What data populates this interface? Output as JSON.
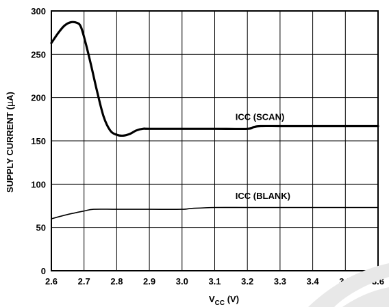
{
  "chart_data": {
    "type": "line",
    "xlabel_main": "V",
    "xlabel_sub": "CC",
    "xlabel_unit": " (V)",
    "ylabel_pre": "SUPPLY CURRENT (",
    "ylabel_mu": "μ",
    "ylabel_post": "A)",
    "xlim": [
      2.6,
      3.6
    ],
    "ylim": [
      0,
      300
    ],
    "x_ticks": [
      "2.6",
      "2.7",
      "2.8",
      "2.9",
      "3.0",
      "3.1",
      "3.2",
      "3.3",
      "3.4",
      "3.5",
      "3.6"
    ],
    "y_ticks": [
      "0",
      "50",
      "100",
      "150",
      "200",
      "250",
      "300"
    ],
    "grid": true,
    "series": [
      {
        "name": "ICC (SCAN)",
        "x": [
          2.6,
          2.62,
          2.64,
          2.66,
          2.68,
          2.69,
          2.7,
          2.72,
          2.74,
          2.76,
          2.78,
          2.8,
          2.82,
          2.84,
          2.86,
          2.88,
          2.9,
          3.0,
          3.1,
          3.2,
          3.22,
          3.24,
          3.3,
          3.4,
          3.5,
          3.6
        ],
        "y": [
          263,
          274,
          283,
          287,
          286,
          282,
          270,
          240,
          207,
          178,
          162,
          157,
          156,
          158,
          162,
          164,
          164,
          164,
          164,
          164,
          166,
          167,
          167,
          167,
          167,
          167
        ]
      },
      {
        "name": "ICC (BLANK)",
        "x": [
          2.6,
          2.65,
          2.7,
          2.73,
          2.8,
          2.9,
          3.0,
          3.03,
          3.1,
          3.2,
          3.3,
          3.4,
          3.5,
          3.6
        ],
        "y": [
          60,
          65,
          69,
          71,
          71,
          71,
          71,
          72,
          73,
          73,
          73,
          73,
          73,
          73
        ]
      }
    ],
    "annotations": [
      {
        "text": "ICC (SCAN)",
        "x": 3.0,
        "y": 178
      },
      {
        "text": "ICC (BLANK)",
        "x": 3.0,
        "y": 87
      }
    ]
  }
}
